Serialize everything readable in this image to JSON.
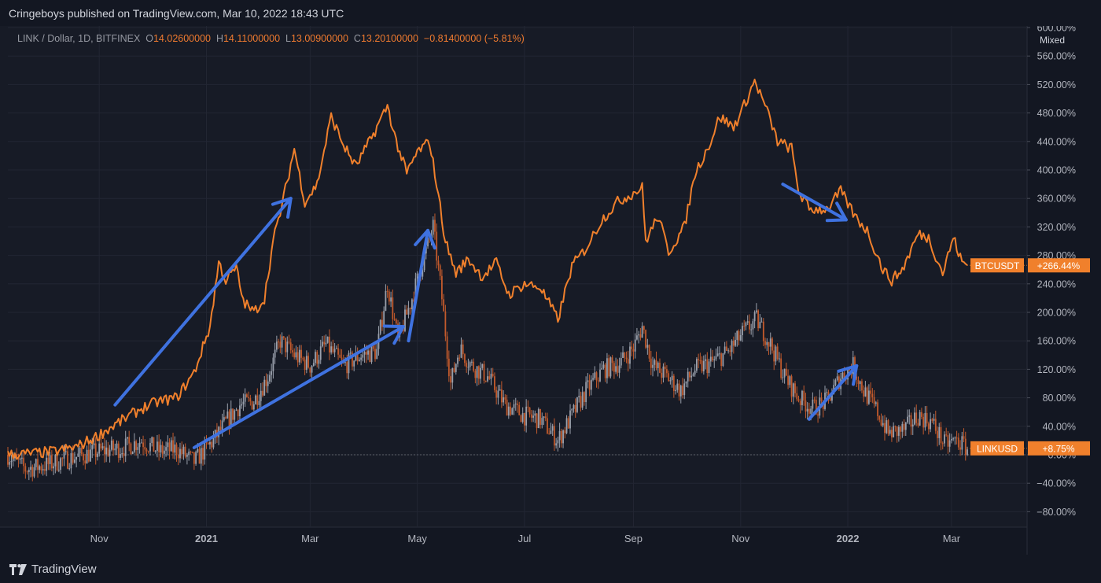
{
  "header": {
    "published_text": "Cringeboys published on TradingView.com, Mar 10, 2022 18:43 UTC"
  },
  "legend": {
    "symbol": "LINK / Dollar, 1D, BITFINEX",
    "open_label": "O",
    "open": "14.02600000",
    "high_label": "H",
    "high": "14.11000000",
    "low_label": "L",
    "low": "13.00900000",
    "close_label": "C",
    "close": "13.20100000",
    "change": "−0.81400000 (−5.81%)"
  },
  "scale_mode": "Mixed",
  "footer": {
    "logo_text": "TradingView",
    "logo_icon": "tradingview-logo-icon"
  },
  "colors": {
    "background": "#171b26",
    "btc_line": "#f0802c",
    "candle_up": "#9aa0ac",
    "candle_down": "#c25a2c",
    "arrows": "#3f72e0",
    "grid": "#222633",
    "axis_text": "#b2b5be"
  },
  "chart_data": {
    "type": "line",
    "y_unit": "percent change",
    "ylim": [
      -95,
      605
    ],
    "y_ticks": [
      "600.00%",
      "560.00%",
      "520.00%",
      "480.00%",
      "440.00%",
      "400.00%",
      "360.00%",
      "320.00%",
      "280.00%",
      "240.00%",
      "200.00%",
      "160.00%",
      "120.00%",
      "80.00%",
      "40.00%",
      "0.00%",
      "−40.00%",
      "−80.00%"
    ],
    "x_ticks": [
      "Nov",
      "2021",
      "Mar",
      "May",
      "Jul",
      "Sep",
      "Nov",
      "2022",
      "Mar"
    ],
    "x_range": [
      "2020-09-10",
      "2022-03-10"
    ],
    "grid": true,
    "series": [
      {
        "name": "BTCUSDT",
        "style": "line",
        "last_label": "+266.44%",
        "points": [
          [
            "2020-09-10",
            0
          ],
          [
            "2020-09-25",
            2
          ],
          [
            "2020-10-08",
            5
          ],
          [
            "2020-10-20",
            12
          ],
          [
            "2020-10-30",
            25
          ],
          [
            "2020-11-10",
            42
          ],
          [
            "2020-11-25",
            65
          ],
          [
            "2020-12-05",
            75
          ],
          [
            "2020-12-15",
            80
          ],
          [
            "2020-12-25",
            115
          ],
          [
            "2021-01-03",
            180
          ],
          [
            "2021-01-08",
            270
          ],
          [
            "2021-01-12",
            245
          ],
          [
            "2021-01-18",
            262
          ],
          [
            "2021-01-22",
            215
          ],
          [
            "2021-01-28",
            200
          ],
          [
            "2021-02-03",
            220
          ],
          [
            "2021-02-08",
            300
          ],
          [
            "2021-02-13",
            350
          ],
          [
            "2021-02-20",
            430
          ],
          [
            "2021-02-26",
            355
          ],
          [
            "2021-03-05",
            380
          ],
          [
            "2021-03-13",
            475
          ],
          [
            "2021-03-20",
            435
          ],
          [
            "2021-03-27",
            405
          ],
          [
            "2021-04-05",
            445
          ],
          [
            "2021-04-14",
            490
          ],
          [
            "2021-04-19",
            440
          ],
          [
            "2021-04-25",
            395
          ],
          [
            "2021-05-01",
            425
          ],
          [
            "2021-05-08",
            440
          ],
          [
            "2021-05-12",
            380
          ],
          [
            "2021-05-17",
            300
          ],
          [
            "2021-05-23",
            255
          ],
          [
            "2021-05-30",
            275
          ],
          [
            "2021-06-07",
            250
          ],
          [
            "2021-06-15",
            270
          ],
          [
            "2021-06-22",
            225
          ],
          [
            "2021-07-01",
            240
          ],
          [
            "2021-07-10",
            235
          ],
          [
            "2021-07-20",
            190
          ],
          [
            "2021-07-28",
            265
          ],
          [
            "2021-08-05",
            290
          ],
          [
            "2021-08-14",
            330
          ],
          [
            "2021-08-23",
            355
          ],
          [
            "2021-09-06",
            375
          ],
          [
            "2021-09-08",
            300
          ],
          [
            "2021-09-15",
            335
          ],
          [
            "2021-09-21",
            285
          ],
          [
            "2021-09-30",
            320
          ],
          [
            "2021-10-06",
            395
          ],
          [
            "2021-10-15",
            440
          ],
          [
            "2021-10-20",
            475
          ],
          [
            "2021-10-28",
            460
          ],
          [
            "2021-11-02",
            485
          ],
          [
            "2021-11-09",
            525
          ],
          [
            "2021-11-15",
            490
          ],
          [
            "2021-11-22",
            440
          ],
          [
            "2021-11-30",
            430
          ],
          [
            "2021-12-04",
            370
          ],
          [
            "2021-12-10",
            345
          ],
          [
            "2021-12-20",
            345
          ],
          [
            "2021-12-28",
            370
          ],
          [
            "2022-01-05",
            335
          ],
          [
            "2022-01-12",
            315
          ],
          [
            "2022-01-21",
            260
          ],
          [
            "2022-01-26",
            245
          ],
          [
            "2022-02-01",
            260
          ],
          [
            "2022-02-10",
            310
          ],
          [
            "2022-02-16",
            305
          ],
          [
            "2022-02-24",
            255
          ],
          [
            "2022-03-02",
            305
          ],
          [
            "2022-03-07",
            270
          ],
          [
            "2022-03-10",
            266
          ]
        ]
      },
      {
        "name": "LINKUSD",
        "style": "candles",
        "last_label": "+8.75%",
        "points": [
          [
            "2020-09-10",
            0
          ],
          [
            "2020-09-20",
            -20
          ],
          [
            "2020-10-01",
            -15
          ],
          [
            "2020-10-15",
            -5
          ],
          [
            "2020-11-01",
            5
          ],
          [
            "2020-11-15",
            10
          ],
          [
            "2020-11-25",
            20
          ],
          [
            "2020-12-05",
            5
          ],
          [
            "2020-12-15",
            8
          ],
          [
            "2020-12-25",
            -10
          ],
          [
            "2021-01-05",
            20
          ],
          [
            "2021-01-12",
            45
          ],
          [
            "2021-01-20",
            70
          ],
          [
            "2021-01-28",
            75
          ],
          [
            "2021-02-05",
            110
          ],
          [
            "2021-02-12",
            160
          ],
          [
            "2021-02-20",
            140
          ],
          [
            "2021-03-01",
            125
          ],
          [
            "2021-03-10",
            155
          ],
          [
            "2021-03-20",
            125
          ],
          [
            "2021-03-30",
            140
          ],
          [
            "2021-04-08",
            145
          ],
          [
            "2021-04-14",
            240
          ],
          [
            "2021-04-20",
            160
          ],
          [
            "2021-04-28",
            220
          ],
          [
            "2021-05-04",
            270
          ],
          [
            "2021-05-10",
            320
          ],
          [
            "2021-05-15",
            220
          ],
          [
            "2021-05-20",
            100
          ],
          [
            "2021-05-25",
            150
          ],
          [
            "2021-06-01",
            125
          ],
          [
            "2021-06-10",
            110
          ],
          [
            "2021-06-20",
            70
          ],
          [
            "2021-07-01",
            55
          ],
          [
            "2021-07-10",
            50
          ],
          [
            "2021-07-20",
            20
          ],
          [
            "2021-07-28",
            55
          ],
          [
            "2021-08-05",
            90
          ],
          [
            "2021-08-15",
            120
          ],
          [
            "2021-08-25",
            130
          ],
          [
            "2021-09-01",
            150
          ],
          [
            "2021-09-06",
            180
          ],
          [
            "2021-09-12",
            125
          ],
          [
            "2021-09-20",
            110
          ],
          [
            "2021-09-28",
            90
          ],
          [
            "2021-10-06",
            120
          ],
          [
            "2021-10-16",
            130
          ],
          [
            "2021-10-25",
            145
          ],
          [
            "2021-11-02",
            170
          ],
          [
            "2021-11-10",
            190
          ],
          [
            "2021-11-18",
            155
          ],
          [
            "2021-11-26",
            110
          ],
          [
            "2021-12-04",
            80
          ],
          [
            "2021-12-12",
            65
          ],
          [
            "2021-12-20",
            75
          ],
          [
            "2021-12-28",
            110
          ],
          [
            "2022-01-04",
            125
          ],
          [
            "2022-01-10",
            90
          ],
          [
            "2022-01-18",
            60
          ],
          [
            "2022-01-24",
            30
          ],
          [
            "2022-02-02",
            35
          ],
          [
            "2022-02-10",
            55
          ],
          [
            "2022-02-18",
            45
          ],
          [
            "2022-02-25",
            15
          ],
          [
            "2022-03-04",
            20
          ],
          [
            "2022-03-10",
            9
          ]
        ]
      }
    ],
    "annotations": [
      {
        "type": "arrow",
        "from": [
          "2020-11-10",
          70
        ],
        "to": [
          "2021-02-18",
          360
        ]
      },
      {
        "type": "arrow",
        "from": [
          "2020-12-25",
          10
        ],
        "to": [
          "2021-04-23",
          180
        ]
      },
      {
        "type": "arrow",
        "from": [
          "2021-04-26",
          160
        ],
        "to": [
          "2021-05-07",
          315
        ]
      },
      {
        "type": "arrow",
        "from": [
          "2021-11-25",
          380
        ],
        "to": [
          "2021-12-31",
          330
        ]
      },
      {
        "type": "arrow",
        "from": [
          "2021-12-10",
          50
        ],
        "to": [
          "2022-01-06",
          125
        ]
      }
    ]
  }
}
